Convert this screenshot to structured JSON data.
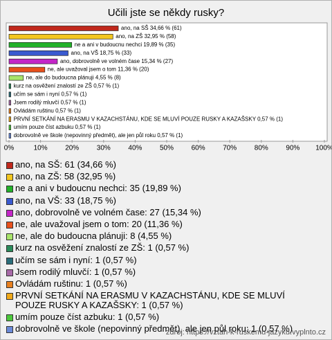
{
  "chart_data": {
    "type": "hbar",
    "title": "Učili jste se někdy rusky?",
    "categories": [
      "ano, na SŠ: 61 (34,66 %)",
      "ano, na ZŠ: 58 (32,95 %)",
      "ne a ani v budoucnu nechci: 35 (19,89 %)",
      "ano, na VŠ: 33 (18,75 %)",
      "ano, dobrovolně ve volném čase: 27 (15,34 %)",
      "ne, ale uvažoval jsem o tom: 20 (11,36 %)",
      "ne, ale do budoucna plánuji: 8 (4,55 %)",
      "kurz na osvěžení znalostí ze ZŠ: 1 (0,57 %)",
      "učím se sám i nyní: 1 (0,57 %)",
      "Jsem rodilý mluvčí: 1 (0,57 %)",
      "Ovládám ruštinu: 1 (0,57 %)",
      "PRVNÍ SETKÁNÍ NA ERASMU V KAZACHSTÁNU, KDE SE MLUVÍ POUZE RUSKY A KAZAŠSKY: 1 (0,57 %)",
      "umím pouze číst azbuku: 1 (0,57 %)",
      "dobrovolně ve škole (nepovinný předmět), ale jen půl roku: 1 (0,57 %)"
    ],
    "values": [
      34.66,
      32.95,
      19.89,
      18.75,
      15.34,
      11.36,
      4.55,
      0.57,
      0.57,
      0.57,
      0.57,
      0.57,
      0.57,
      0.57
    ],
    "value_labels": [
      "ano, na SŠ 34,66 % (61)",
      "ano, na ZŠ 32,95 % (58)",
      "ne a ani v budoucnu nechci 19,89 % (35)",
      "ano, na VŠ 18,75 % (33)",
      "ano, dobrovolně ve volném čase 15,34 % (27)",
      "ne, ale uvažoval jsem o tom 11,36 % (20)",
      "ne, ale do budoucna plánuji 4,55 % (8)",
      "kurz na osvěžení znalostí ze ZŠ 0,57 % (1)",
      "učím se sám i nyní 0,57 % (1)",
      "Jsem rodilý mluvčí 0,57 % (1)",
      "Ovládám ruštinu 0,57 % (1)",
      "PRVNÍ SETKÁNÍ NA ERASMU V KAZACHSTÁNU, KDE SE MLUVÍ POUZE RUSKY A KAZAŠSKY 0,57 % (1)",
      "umím pouze číst azbuku 0,57 % (1)",
      "dobrovolně ve škole (nepovinný předmět), ale jen půl roku 0,57 % (1)"
    ],
    "colors": [
      "#c0281c",
      "#f2c61f",
      "#22b22a",
      "#3a5ad0",
      "#c426c8",
      "#e8501c",
      "#a8e46a",
      "#2a8a5a",
      "#2a6e7a",
      "#a86aa8",
      "#e88020",
      "#f0a818",
      "#4cc83c",
      "#6a8ad8"
    ],
    "xlim": [
      0,
      100
    ],
    "xticks": [
      {
        "value": 0,
        "label": "0%"
      },
      {
        "value": 10,
        "label": "10%"
      },
      {
        "value": 20,
        "label": "20%"
      },
      {
        "value": 30,
        "label": "30%"
      },
      {
        "value": 40,
        "label": "40%"
      },
      {
        "value": 50,
        "label": "50%"
      },
      {
        "value": 60,
        "label": "60%"
      },
      {
        "value": 70,
        "label": "70%"
      },
      {
        "value": 80,
        "label": "80%"
      },
      {
        "value": 90,
        "label": "90%"
      },
      {
        "value": 100,
        "label": "100%"
      }
    ],
    "source": "zdroj: https://vztah-k-ruskemu-jazyku.vyplnto.cz"
  }
}
